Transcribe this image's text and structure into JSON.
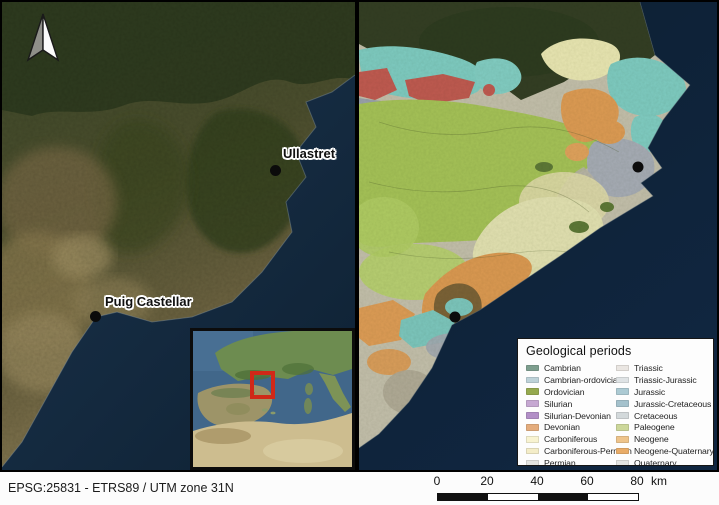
{
  "window": {
    "background": "#000000"
  },
  "left_map": {
    "basemap": "satellite",
    "markers": [
      {
        "label": "Ullastret"
      },
      {
        "label": "Puig Castellar"
      }
    ]
  },
  "right_map": {
    "basemap": "geological map over satellite",
    "unlabeled_marker_count": 2
  },
  "inset": {
    "highlight_color": "#d02818",
    "depicts": "western Mediterranean with red extent rectangle"
  },
  "legend": {
    "title": "Geological periods",
    "columns": [
      {
        "rows": [
          {
            "label": "Cambrian",
            "color": "#7d9e8e"
          },
          {
            "label": "Cambrian-ordovician",
            "color": "#bdd2d8"
          },
          {
            "label": "Ordovician",
            "color": "#95a94e"
          },
          {
            "label": "Silurian",
            "color": "#c6a8d2"
          },
          {
            "label": "Silurian-Devonian",
            "color": "#b28fc7"
          },
          {
            "label": "Devonian",
            "color": "#e4ac7c"
          },
          {
            "label": "Carboniferous",
            "color": "#f8f3d1"
          },
          {
            "label": "Carboniferous-Permian",
            "color": "#f4edc8"
          },
          {
            "label": "Permian",
            "color": "#e4e4e1"
          }
        ]
      },
      {
        "rows": [
          {
            "label": "Triassic",
            "color": "#eae6e2"
          },
          {
            "label": "Triassic-Jurassic",
            "color": "#dfe3e5"
          },
          {
            "label": "Jurassic",
            "color": "#accad3"
          },
          {
            "label": "Jurassic-Cretaceous",
            "color": "#a4c1cc"
          },
          {
            "label": "Cretaceous",
            "color": "#d3d9db"
          },
          {
            "label": "Paleogene",
            "color": "#ccd79a"
          },
          {
            "label": "Neogene",
            "color": "#eec48b"
          },
          {
            "label": "Neogene-Quaternary",
            "color": "#e9ac68"
          },
          {
            "label": "Quaternary",
            "color": "#e4e4e2"
          }
        ]
      }
    ]
  },
  "scalebar": {
    "ticks": [
      "0",
      "20",
      "40",
      "60",
      "80"
    ],
    "unit": "km",
    "segments": [
      "#111111",
      "#ffffff",
      "#111111",
      "#ffffff"
    ]
  },
  "footer": {
    "crs": "EPSG:25831 - ETRS89 / UTM zone 31N"
  }
}
